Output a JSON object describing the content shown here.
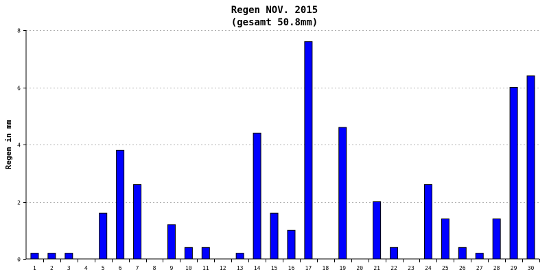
{
  "chart_data": {
    "type": "bar",
    "title": "Regen NOV. 2015",
    "subtitle": "(gesamt 50.8mm)",
    "xlabel": "",
    "ylabel": "Regen in mm",
    "ylim": [
      0,
      8
    ],
    "yticks": [
      0,
      2,
      4,
      6,
      8
    ],
    "grid": true,
    "colors": {
      "bar": "#0000ff",
      "bar_edge": "#000000",
      "grid": "#b0b0b0"
    },
    "categories": [
      "1",
      "2",
      "3",
      "4",
      "5",
      "6",
      "7",
      "8",
      "9",
      "10",
      "11",
      "12",
      "13",
      "14",
      "15",
      "16",
      "17",
      "18",
      "19",
      "20",
      "21",
      "22",
      "23",
      "24",
      "25",
      "26",
      "27",
      "28",
      "29",
      "30"
    ],
    "values": [
      0.2,
      0.2,
      0.2,
      0,
      1.6,
      3.8,
      2.6,
      0,
      1.2,
      0.4,
      0.4,
      0,
      0.2,
      4.4,
      1.6,
      1.0,
      7.6,
      0,
      4.6,
      0,
      2.0,
      0.4,
      0,
      2.6,
      1.4,
      0.4,
      0.2,
      1.4,
      6.0,
      6.4
    ]
  }
}
